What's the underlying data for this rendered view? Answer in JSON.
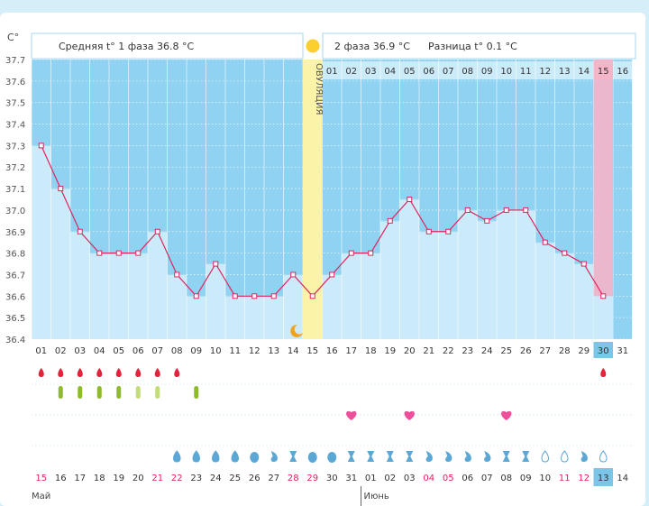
{
  "header": {
    "unit": "C°",
    "phase1_text": "Средняя t° 1 фаза 36.8 °C",
    "phase2_text": "2 фаза 36.9 °C",
    "diff_text": "Разница t° 0.1 °C",
    "ovulation_label": "ОВУЛЯЦИЯ"
  },
  "chart_data": {
    "type": "line",
    "title": "",
    "ylabel": "C°",
    "ylim": [
      36.4,
      37.7
    ],
    "y_ticks": [
      "36.4",
      "36.5",
      "36.6",
      "36.7",
      "36.8",
      "36.9",
      "37.0",
      "37.1",
      "37.2",
      "37.3",
      "37.4",
      "37.5",
      "37.6",
      "37.7"
    ],
    "cycle_days": [
      "01",
      "02",
      "03",
      "04",
      "05",
      "06",
      "07",
      "08",
      "09",
      "10",
      "11",
      "12",
      "13",
      "14",
      "15",
      "16",
      "17",
      "18",
      "19",
      "20",
      "21",
      "22",
      "23",
      "24",
      "25",
      "26",
      "27",
      "28",
      "29",
      "30",
      "31"
    ],
    "values": [
      37.3,
      37.1,
      36.9,
      36.8,
      36.8,
      36.8,
      36.9,
      36.7,
      36.6,
      36.75,
      36.6,
      36.6,
      36.6,
      36.7,
      36.6,
      36.7,
      36.8,
      36.8,
      36.95,
      37.05,
      36.9,
      36.9,
      37.0,
      36.95,
      37.0,
      37.0,
      36.85,
      36.8,
      36.75,
      36.6,
      null
    ],
    "luteal_days": [
      "01",
      "02",
      "03",
      "04",
      "05",
      "06",
      "07",
      "08",
      "09",
      "10",
      "11",
      "12",
      "13",
      "14",
      "15",
      "16"
    ],
    "luteal_highlight": "15",
    "ovulation_day": 15,
    "highlight_cycle_day": "30",
    "calendar_days": [
      "15",
      "16",
      "17",
      "18",
      "19",
      "20",
      "21",
      "22",
      "23",
      "24",
      "25",
      "26",
      "27",
      "28",
      "29",
      "30",
      "31",
      "01",
      "02",
      "03",
      "04",
      "05",
      "06",
      "07",
      "08",
      "09",
      "10",
      "11",
      "12",
      "13",
      "14"
    ],
    "calendar_red": [
      0,
      6,
      7,
      13,
      14,
      20,
      21,
      27,
      28
    ],
    "calendar_highlight": 29,
    "month_labels": [
      "Май",
      "Июнь"
    ],
    "bleeding_days": [
      1,
      2,
      3,
      4,
      5,
      6,
      7,
      8,
      30
    ],
    "discharge_days": [
      2,
      3,
      4,
      5,
      6,
      7,
      9
    ],
    "discharge_light_days": [
      6,
      7
    ],
    "heart_days": [
      17,
      20,
      25
    ],
    "mucus_pattern": [
      "drop",
      "drop",
      "drop",
      "drop",
      "drop-full",
      "drop-half",
      "hourglass",
      "drop-full",
      "drop-full",
      "hourglass",
      "hourglass",
      "hourglass",
      "hourglass",
      "drop-half",
      "drop-half",
      "drop-half",
      "drop-half",
      "hourglass",
      "hourglass",
      "drop-empty",
      "drop-empty",
      "drop-half",
      "drop-empty"
    ],
    "mucus_start_day": 8,
    "colors": {
      "sky": "#8fd2f1",
      "fill": "#cbeafa",
      "line": "#e0245e",
      "ovulation": "#fbf4a8",
      "highlight": "#f5b4c8",
      "grid": "#a5d9f2",
      "badge": "#7bc6e8"
    }
  }
}
